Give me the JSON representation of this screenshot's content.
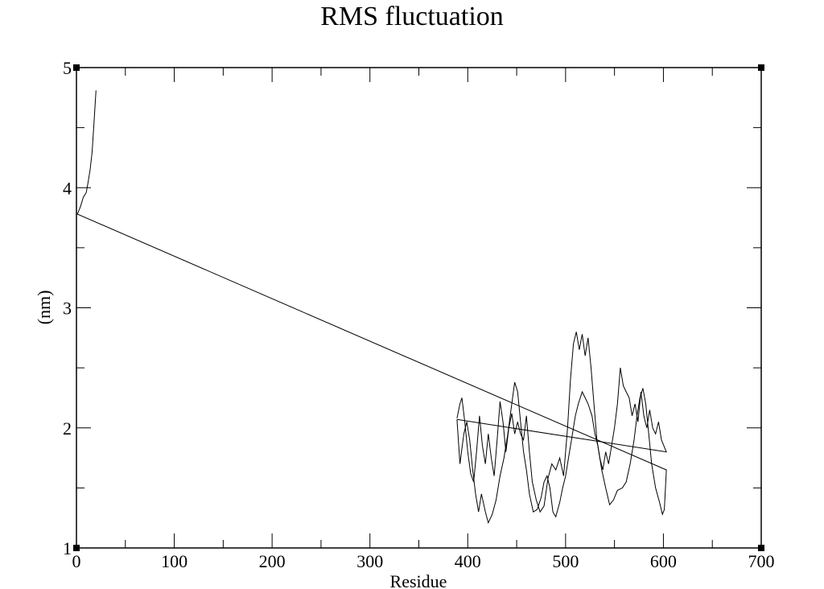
{
  "chart_data": {
    "type": "line",
    "title": "RMS fluctuation",
    "xlabel": "Residue",
    "ylabel": "(nm)",
    "xlim": [
      0,
      700
    ],
    "ylim": [
      1,
      5
    ],
    "x_ticks": [
      0,
      100,
      200,
      300,
      400,
      500,
      600,
      700
    ],
    "y_ticks": [
      1,
      2,
      3,
      4,
      5
    ],
    "x_minor_step": 50,
    "y_minor_step": 0.5,
    "grid": false,
    "legend": null,
    "series": [
      {
        "name": "series-1",
        "color": "#000000",
        "points": [
          [
            20,
            4.81
          ],
          [
            18,
            4.55
          ],
          [
            16,
            4.3
          ],
          [
            14,
            4.15
          ],
          [
            12,
            4.05
          ],
          [
            10,
            3.96
          ],
          [
            7,
            3.92
          ],
          [
            4,
            3.84
          ],
          [
            1,
            3.78
          ],
          [
            603,
            1.65
          ],
          [
            601,
            1.32
          ],
          [
            599,
            1.28
          ],
          [
            596,
            1.38
          ],
          [
            592,
            1.5
          ],
          [
            588,
            1.7
          ],
          [
            585,
            1.95
          ],
          [
            582,
            2.2
          ],
          [
            579,
            2.33
          ],
          [
            576,
            2.25
          ],
          [
            573,
            2.1
          ],
          [
            570,
            1.9
          ],
          [
            566,
            1.7
          ],
          [
            562,
            1.55
          ],
          [
            558,
            1.5
          ],
          [
            553,
            1.48
          ],
          [
            549,
            1.4
          ],
          [
            545,
            1.36
          ],
          [
            541,
            1.5
          ],
          [
            537,
            1.65
          ],
          [
            533,
            1.85
          ],
          [
            530,
            1.95
          ],
          [
            527,
            2.1
          ],
          [
            523,
            2.2
          ],
          [
            520,
            2.25
          ],
          [
            517,
            2.3
          ],
          [
            513,
            2.2
          ],
          [
            510,
            2.1
          ],
          [
            506,
            1.9
          ],
          [
            503,
            1.75
          ],
          [
            500,
            1.6
          ],
          [
            497,
            1.5
          ],
          [
            494,
            1.38
          ],
          [
            490,
            1.26
          ],
          [
            487,
            1.3
          ],
          [
            484,
            1.5
          ],
          [
            481,
            1.6
          ],
          [
            478,
            1.55
          ],
          [
            475,
            1.42
          ],
          [
            471,
            1.32
          ],
          [
            467,
            1.3
          ],
          [
            463,
            1.45
          ],
          [
            460,
            1.65
          ],
          [
            457,
            1.8
          ],
          [
            454,
            2.05
          ],
          [
            451,
            2.3
          ],
          [
            448,
            2.38
          ],
          [
            445,
            2.2
          ],
          [
            441,
            1.95
          ],
          [
            437,
            1.75
          ],
          [
            433,
            1.6
          ],
          [
            429,
            1.4
          ],
          [
            425,
            1.28
          ],
          [
            421,
            1.21
          ],
          [
            418,
            1.3
          ],
          [
            414,
            1.45
          ],
          [
            411,
            1.3
          ],
          [
            408,
            1.45
          ],
          [
            405,
            1.65
          ],
          [
            402,
            1.9
          ],
          [
            399,
            2.05
          ],
          [
            396,
            1.95
          ],
          [
            392,
            1.7
          ],
          [
            389,
            2.07
          ]
        ]
      },
      {
        "name": "series-2",
        "color": "#000000",
        "points": [
          [
            389,
            2.08
          ],
          [
            392,
            2.2
          ],
          [
            394,
            2.25
          ],
          [
            397,
            2.05
          ],
          [
            400,
            1.8
          ],
          [
            403,
            1.62
          ],
          [
            406,
            1.55
          ],
          [
            409,
            1.8
          ],
          [
            412,
            2.1
          ],
          [
            415,
            1.85
          ],
          [
            418,
            1.7
          ],
          [
            421,
            1.95
          ],
          [
            424,
            1.75
          ],
          [
            427,
            1.6
          ],
          [
            430,
            1.9
          ],
          [
            433,
            2.22
          ],
          [
            436,
            2.05
          ],
          [
            439,
            1.8
          ],
          [
            442,
            2.0
          ],
          [
            445,
            2.12
          ],
          [
            448,
            1.95
          ],
          [
            451,
            2.05
          ],
          [
            454,
            1.95
          ],
          [
            457,
            1.9
          ],
          [
            460,
            2.1
          ],
          [
            463,
            1.8
          ],
          [
            466,
            1.55
          ],
          [
            470,
            1.4
          ],
          [
            474,
            1.3
          ],
          [
            478,
            1.35
          ],
          [
            482,
            1.58
          ],
          [
            486,
            1.7
          ],
          [
            490,
            1.65
          ],
          [
            494,
            1.75
          ],
          [
            498,
            1.6
          ],
          [
            502,
            2.0
          ],
          [
            505,
            2.4
          ],
          [
            508,
            2.7
          ],
          [
            511,
            2.8
          ],
          [
            514,
            2.65
          ],
          [
            517,
            2.78
          ],
          [
            520,
            2.6
          ],
          [
            523,
            2.75
          ],
          [
            526,
            2.5
          ],
          [
            529,
            2.2
          ],
          [
            532,
            1.9
          ],
          [
            535,
            1.75
          ],
          [
            538,
            1.65
          ],
          [
            541,
            1.8
          ],
          [
            544,
            1.7
          ],
          [
            547,
            1.85
          ],
          [
            550,
            2.0
          ],
          [
            553,
            2.2
          ],
          [
            556,
            2.5
          ],
          [
            559,
            2.35
          ],
          [
            562,
            2.3
          ],
          [
            565,
            2.25
          ],
          [
            568,
            2.1
          ],
          [
            571,
            2.2
          ],
          [
            574,
            2.05
          ],
          [
            577,
            2.3
          ],
          [
            580,
            2.1
          ],
          [
            583,
            2.0
          ],
          [
            586,
            2.15
          ],
          [
            589,
            2.0
          ],
          [
            592,
            1.95
          ],
          [
            595,
            2.05
          ],
          [
            598,
            1.9
          ],
          [
            603,
            1.8
          ],
          [
            389,
            2.07
          ]
        ]
      }
    ]
  }
}
